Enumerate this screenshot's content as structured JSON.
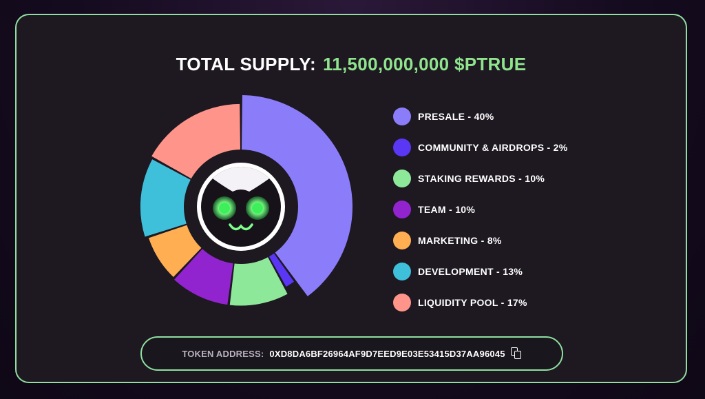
{
  "title": {
    "label": "TOTAL SUPPLY:",
    "value": "11,500,000,000 $PTRUE"
  },
  "token": {
    "label": "TOKEN ADDRESS:",
    "address": "0XD8DA6BF26964AF9D7EED9E03E53415D37AA96045",
    "copy_icon": "copy-icon"
  },
  "mascot_icon": "cat-face-icon",
  "chart_data": {
    "type": "pie",
    "donut": true,
    "categories": [
      "PRESALE",
      "COMMUNITY & AIRDROPS",
      "STAKING REWARDS",
      "TEAM",
      "MARKETING",
      "DEVELOPMENT",
      "LIQUIDITY POOL"
    ],
    "values": [
      40,
      2,
      10,
      10,
      8,
      13,
      17
    ],
    "unit": "%",
    "colors": [
      "#8b7dfa",
      "#5a36f5",
      "#8ee89a",
      "#9224cf",
      "#ffae52",
      "#3fc0da",
      "#ff958a"
    ],
    "legend": [
      "PRESALE - 40%",
      "COMMUNITY & AIRDROPS - 2%",
      "STAKING REWARDS - 10%",
      "TEAM - 10%",
      "MARKETING - 8%",
      "DEVELOPMENT - 13%",
      "LIQUIDITY POOL - 17%"
    ],
    "legend_position": "right"
  }
}
